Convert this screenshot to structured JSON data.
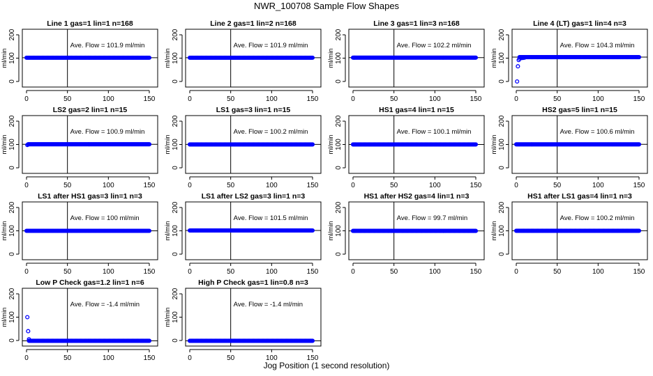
{
  "figure": {
    "title": "NWR_100708  Sample Flow Shapes",
    "xlabel": "Jog Position (1 second resolution)"
  },
  "chart_data": [
    {
      "type": "scatter",
      "title": "Line 1 gas=1 lin=1 n=168",
      "ylabel": "ml/min",
      "xlim": [
        0,
        150
      ],
      "ylim": [
        0,
        200
      ],
      "x_ticks": [
        0,
        50,
        100,
        150
      ],
      "y_ticks": [
        0,
        100,
        200
      ],
      "vline_x": 50,
      "hline_y": 101.9,
      "series": [
        {
          "name": "",
          "x_range": [
            0,
            150
          ],
          "y": 101.9,
          "color": "#0000ff",
          "first_points": []
        }
      ],
      "annotation": "Ave. Flow =  101.9  ml/min"
    },
    {
      "type": "scatter",
      "title": "Line 2 gas=1 lin=2 n=168",
      "ylabel": "ml/min",
      "xlim": [
        0,
        150
      ],
      "ylim": [
        0,
        200
      ],
      "x_ticks": [
        0,
        50,
        100,
        150
      ],
      "y_ticks": [
        0,
        100,
        200
      ],
      "vline_x": 50,
      "hline_y": 101.9,
      "series": [
        {
          "name": "",
          "x_range": [
            0,
            150
          ],
          "y": 101.9,
          "color": "#0000ff",
          "first_points": []
        }
      ],
      "annotation": "Ave. Flow =  101.9  ml/min"
    },
    {
      "type": "scatter",
      "title": "Line 3 gas=1 lin=3 n=168",
      "ylabel": "ml/min",
      "xlim": [
        0,
        150
      ],
      "ylim": [
        0,
        200
      ],
      "x_ticks": [
        0,
        50,
        100,
        150
      ],
      "y_ticks": [
        0,
        100,
        200
      ],
      "vline_x": 50,
      "hline_y": 102.2,
      "series": [
        {
          "name": "",
          "x_range": [
            0,
            150
          ],
          "y": 102.2,
          "color": "#0000ff",
          "first_points": []
        }
      ],
      "annotation": "Ave. Flow =  102.2  ml/min"
    },
    {
      "type": "scatter",
      "title": "Line 4 (LT) gas=1 lin=4 n=3",
      "ylabel": "ml/min",
      "xlim": [
        0,
        150
      ],
      "ylim": [
        0,
        200
      ],
      "x_ticks": [
        0,
        50,
        100,
        150
      ],
      "y_ticks": [
        0,
        100,
        200
      ],
      "vline_x": 50,
      "hline_y": 104.3,
      "series": [
        {
          "name": "",
          "x_range": [
            4,
            150
          ],
          "y": 104.3,
          "color": "#0000ff",
          "first_points": [
            [
              1,
              0
            ],
            [
              2,
              65
            ],
            [
              3,
              92
            ],
            [
              4,
              98
            ],
            [
              6,
              100
            ],
            [
              8,
              101
            ],
            [
              10,
              102
            ]
          ]
        }
      ],
      "annotation": "Ave. Flow =  104.3  ml/min"
    },
    {
      "type": "scatter",
      "title": "LS2 gas=2 lin=1 n=15",
      "ylabel": "ml/min",
      "xlim": [
        0,
        150
      ],
      "ylim": [
        0,
        200
      ],
      "x_ticks": [
        0,
        50,
        100,
        150
      ],
      "y_ticks": [
        0,
        100,
        200
      ],
      "vline_x": 50,
      "hline_y": 100.9,
      "series": [
        {
          "name": "",
          "x_range": [
            2,
            150
          ],
          "y": 100.9,
          "color": "#0000ff",
          "first_points": [
            [
              1,
              98
            ]
          ]
        }
      ],
      "annotation": "Ave. Flow =  100.9  ml/min"
    },
    {
      "type": "scatter",
      "title": "LS1 gas=3 lin=1 n=15",
      "ylabel": "ml/min",
      "xlim": [
        0,
        150
      ],
      "ylim": [
        0,
        200
      ],
      "x_ticks": [
        0,
        50,
        100,
        150
      ],
      "y_ticks": [
        0,
        100,
        200
      ],
      "vline_x": 50,
      "hline_y": 100.2,
      "series": [
        {
          "name": "",
          "x_range": [
            0,
            150
          ],
          "y": 100.2,
          "color": "#0000ff",
          "first_points": []
        }
      ],
      "annotation": "Ave. Flow =  100.2  ml/min"
    },
    {
      "type": "scatter",
      "title": "HS1 gas=4 lin=1 n=15",
      "ylabel": "ml/min",
      "xlim": [
        0,
        150
      ],
      "ylim": [
        0,
        200
      ],
      "x_ticks": [
        0,
        50,
        100,
        150
      ],
      "y_ticks": [
        0,
        100,
        200
      ],
      "vline_x": 50,
      "hline_y": 100.1,
      "series": [
        {
          "name": "",
          "x_range": [
            0,
            150
          ],
          "y": 100.1,
          "color": "#0000ff",
          "first_points": []
        }
      ],
      "annotation": "Ave. Flow =  100.1  ml/min"
    },
    {
      "type": "scatter",
      "title": "HS2 gas=5 lin=1 n=15",
      "ylabel": "ml/min",
      "xlim": [
        0,
        150
      ],
      "ylim": [
        0,
        200
      ],
      "x_ticks": [
        0,
        50,
        100,
        150
      ],
      "y_ticks": [
        0,
        100,
        200
      ],
      "vline_x": 50,
      "hline_y": 100.6,
      "series": [
        {
          "name": "",
          "x_range": [
            0,
            150
          ],
          "y": 100.6,
          "color": "#0000ff",
          "first_points": []
        }
      ],
      "annotation": "Ave. Flow =  100.6  ml/min"
    },
    {
      "type": "scatter",
      "title": "LS1 after HS1 gas=3 lin=1 n=3",
      "ylabel": "ml/min",
      "xlim": [
        0,
        150
      ],
      "ylim": [
        0,
        200
      ],
      "x_ticks": [
        0,
        50,
        100,
        150
      ],
      "y_ticks": [
        0,
        100,
        200
      ],
      "vline_x": 50,
      "hline_y": 100,
      "series": [
        {
          "name": "",
          "x_range": [
            0,
            150
          ],
          "y": 100,
          "color": "#0000ff",
          "first_points": []
        }
      ],
      "annotation": "Ave. Flow =  100  ml/min"
    },
    {
      "type": "scatter",
      "title": "LS1 after LS2 gas=3 lin=1 n=3",
      "ylabel": "ml/min",
      "xlim": [
        0,
        150
      ],
      "ylim": [
        0,
        200
      ],
      "x_ticks": [
        0,
        50,
        100,
        150
      ],
      "y_ticks": [
        0,
        100,
        200
      ],
      "vline_x": 50,
      "hline_y": 101.5,
      "series": [
        {
          "name": "",
          "x_range": [
            0,
            150
          ],
          "y": 101.5,
          "color": "#0000ff",
          "first_points": []
        }
      ],
      "annotation": "Ave. Flow =  101.5  ml/min"
    },
    {
      "type": "scatter",
      "title": "HS1 after HS2 gas=4 lin=1 n=3",
      "ylabel": "ml/min",
      "xlim": [
        0,
        150
      ],
      "ylim": [
        0,
        200
      ],
      "x_ticks": [
        0,
        50,
        100,
        150
      ],
      "y_ticks": [
        0,
        100,
        200
      ],
      "vline_x": 50,
      "hline_y": 99.7,
      "series": [
        {
          "name": "",
          "x_range": [
            0,
            150
          ],
          "y": 99.7,
          "color": "#0000ff",
          "first_points": []
        }
      ],
      "annotation": "Ave. Flow =  99.7  ml/min"
    },
    {
      "type": "scatter",
      "title": "HS1 after LS1 gas=4 lin=1 n=3",
      "ylabel": "ml/min",
      "xlim": [
        0,
        150
      ],
      "ylim": [
        0,
        200
      ],
      "x_ticks": [
        0,
        50,
        100,
        150
      ],
      "y_ticks": [
        0,
        100,
        200
      ],
      "vline_x": 50,
      "hline_y": 100.2,
      "series": [
        {
          "name": "",
          "x_range": [
            0,
            150
          ],
          "y": 100.2,
          "color": "#0000ff",
          "first_points": []
        }
      ],
      "annotation": "Ave. Flow =  100.2  ml/min"
    },
    {
      "type": "scatter",
      "title": "Low P Check gas=1.2 lin=1 n=6",
      "ylabel": "ml/min",
      "xlim": [
        0,
        150
      ],
      "ylim": [
        0,
        200
      ],
      "x_ticks": [
        0,
        50,
        100,
        150
      ],
      "y_ticks": [
        0,
        100,
        200
      ],
      "vline_x": 50,
      "hline_y": -1.4,
      "series": [
        {
          "name": "",
          "x_range": [
            3,
            150
          ],
          "y": -1.4,
          "color": "#0000ff",
          "first_points": [
            [
              1,
              100
            ],
            [
              2,
              40
            ],
            [
              3,
              5
            ]
          ]
        }
      ],
      "annotation": "Ave. Flow =  -1.4  ml/min"
    },
    {
      "type": "scatter",
      "title": "High P Check gas=1 lin=0.8 n=3",
      "ylabel": "ml/min",
      "xlim": [
        0,
        150
      ],
      "ylim": [
        0,
        200
      ],
      "x_ticks": [
        0,
        50,
        100,
        150
      ],
      "y_ticks": [
        0,
        100,
        200
      ],
      "vline_x": 50,
      "hline_y": -1.4,
      "series": [
        {
          "name": "",
          "x_range": [
            0,
            150
          ],
          "y": -1.4,
          "color": "#0000ff",
          "first_points": []
        }
      ],
      "annotation": "Ave. Flow =  -1.4  ml/min"
    }
  ]
}
